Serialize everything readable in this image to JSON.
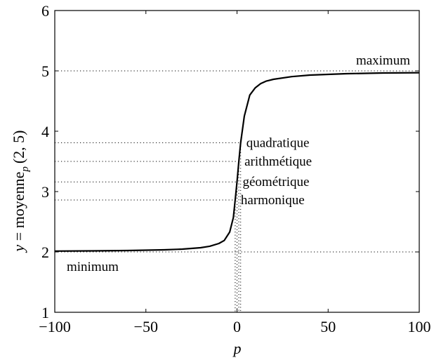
{
  "chart_data": {
    "type": "line",
    "xlabel": "p",
    "ylabel": {
      "var": "y",
      "eq": " = moyenne",
      "sub": "p",
      "args": "(2, 5)"
    },
    "xlim": [
      -100,
      100
    ],
    "ylim": [
      1,
      6
    ],
    "x_ticks": [
      -100,
      -50,
      0,
      50,
      100
    ],
    "x_tick_labels": [
      "−100",
      "−50",
      "0",
      "50",
      "100"
    ],
    "y_ticks": [
      1,
      2,
      3,
      4,
      5,
      6
    ],
    "y_tick_labels": [
      "1",
      "2",
      "3",
      "4",
      "5",
      "6"
    ],
    "grid": false,
    "series": [
      {
        "x": [
          -100,
          -80,
          -60,
          -40,
          -30,
          -20,
          -15,
          -10,
          -7,
          -4,
          -2,
          -1,
          0,
          1,
          2,
          4,
          7,
          10,
          13,
          16,
          20,
          30,
          40,
          60,
          80,
          100
        ],
        "y": [
          2.014,
          2.017,
          2.023,
          2.035,
          2.047,
          2.07,
          2.094,
          2.14,
          2.19,
          2.33,
          2.57,
          2.86,
          3.16,
          3.5,
          3.81,
          4.25,
          4.6,
          4.72,
          4.79,
          4.83,
          4.86,
          4.905,
          4.93,
          4.953,
          4.965,
          4.97
        ],
        "color": "#000000"
      }
    ],
    "reference_lines": [
      {
        "label": "maximum",
        "y": 5.0,
        "x_end": 100
      },
      {
        "label": "quadratique",
        "y": 3.81,
        "x_end": 2
      },
      {
        "label": "arithmétique",
        "y": 3.5,
        "x_end": 1
      },
      {
        "label": "géométrique",
        "y": 3.16,
        "x_end": 0
      },
      {
        "label": "harmonique",
        "y": 2.86,
        "x_end": -1
      },
      {
        "label": "minimum",
        "y": 2.0,
        "x_end": 100
      }
    ]
  }
}
